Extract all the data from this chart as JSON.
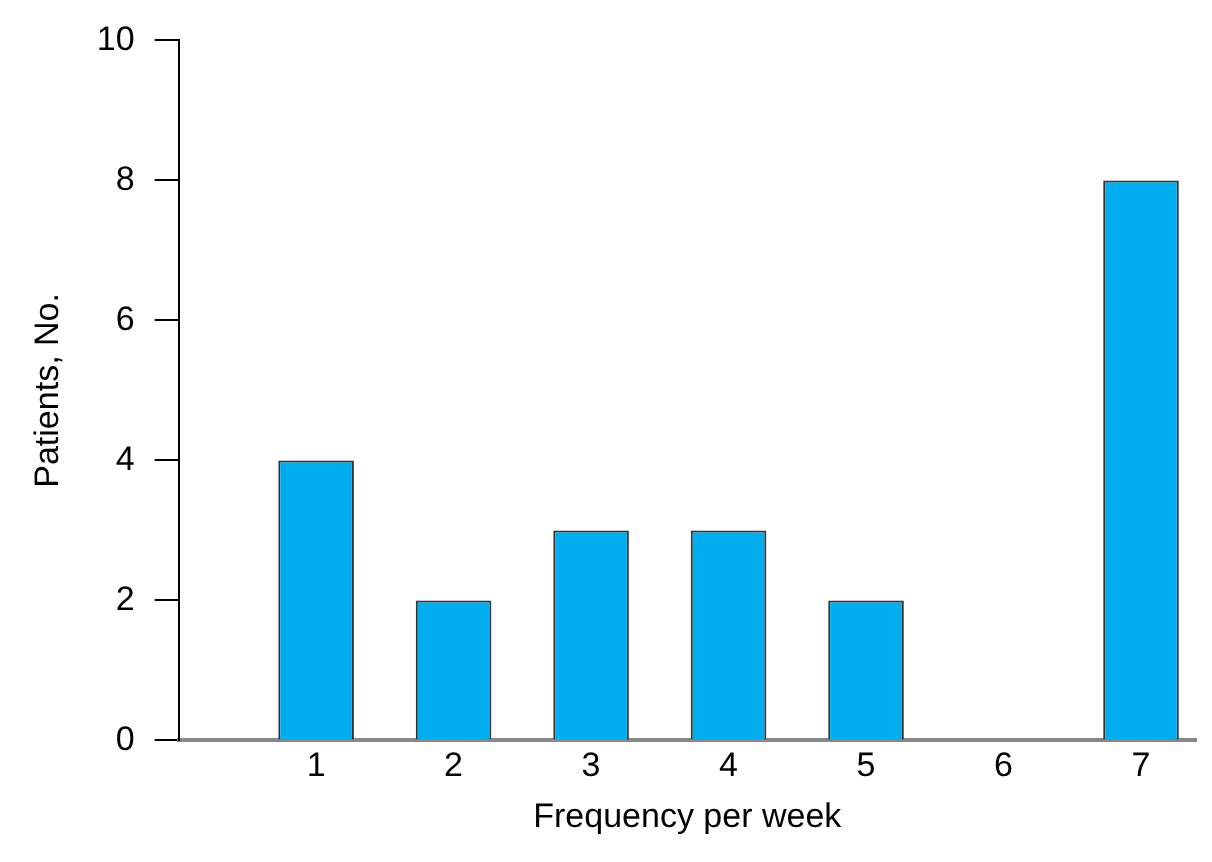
{
  "chart_data": {
    "type": "bar",
    "xlabel": "Frequency per week",
    "ylabel": "Patients, No.",
    "x": [
      1,
      2,
      3,
      4,
      5,
      6,
      7
    ],
    "values": [
      4,
      2,
      3,
      3,
      2,
      0,
      8
    ],
    "color": "#00aeef",
    "xlim": [
      0,
      7.4
    ],
    "xticks": [
      1,
      2,
      3,
      4,
      5,
      6,
      7
    ],
    "ylim": [
      0,
      10
    ],
    "yticks": [
      0,
      2,
      4,
      6,
      8,
      10
    ],
    "grid": false,
    "legend": false
  }
}
